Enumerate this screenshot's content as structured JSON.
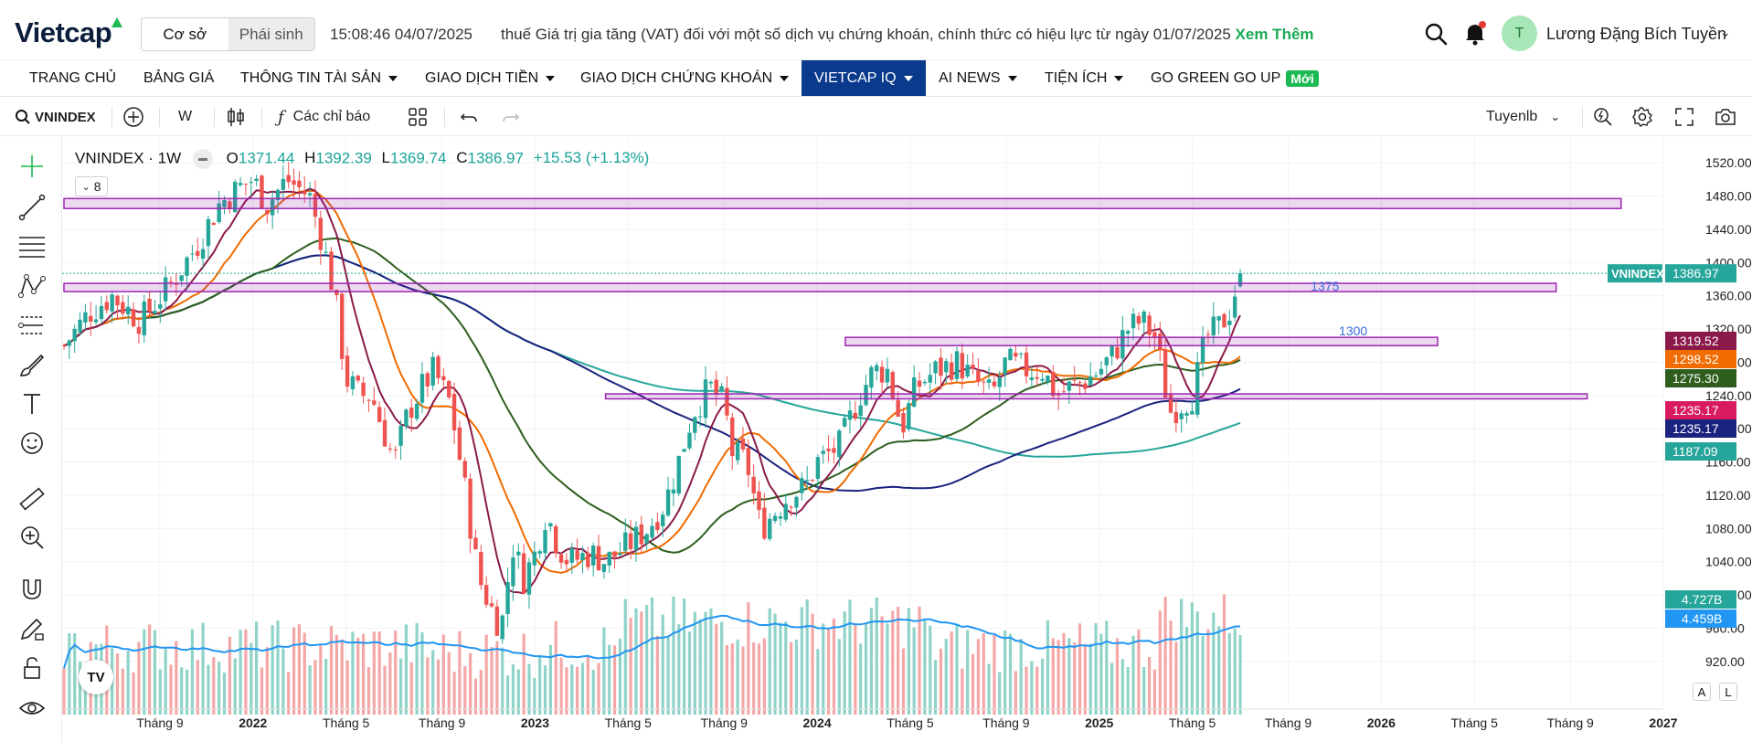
{
  "header": {
    "logo_text": "Vietcap",
    "market_tabs": [
      "Cơ sở",
      "Phái sinh"
    ],
    "clock": "15:08:46 04/07/2025",
    "news_text": "thuế Giá trị gia tăng (VAT) đối với một số dịch vụ chứng khoán, chính thức có hiệu lực từ ngày 01/07/2025",
    "news_more": "Xem Thêm",
    "avatar_initial": "T",
    "user_name": "Lương Đặng Bích Tuyền"
  },
  "nav": {
    "items": [
      "TRANG CHỦ",
      "BẢNG GIÁ",
      "THÔNG TIN TÀI SẢN",
      "GIAO DỊCH TIỀN",
      "GIAO DỊCH CHỨNG KHOÁN",
      "VIETCAP IQ",
      "AI NEWS",
      "TIỆN ÍCH",
      "GO GREEN GO UP"
    ],
    "new_badge": "Mới"
  },
  "toolbar": {
    "symbol": "VNINDEX",
    "interval": "W",
    "indicators": "Các chỉ báo",
    "layout_name": "Tuyenlb"
  },
  "legend": {
    "title": "VNINDEX · 1W",
    "o_label": "O",
    "o_value": "1371.44",
    "h_label": "H",
    "h_value": "1392.39",
    "l_label": "L",
    "l_value": "1369.74",
    "c_label": "C",
    "c_value": "1386.97",
    "change": "+15.53 (+1.13%)",
    "collapse_count": "8"
  },
  "scale_buttons": [
    "A",
    "L"
  ],
  "colors": {
    "up": "#26a69a",
    "down": "#ef5350",
    "zone": "#9c27b0",
    "ma_dark_red": "#8b1a4a",
    "ma_orange": "#f06b00",
    "ma_dark_green": "#2e5e1e",
    "ma_navy": "#1a237e",
    "ma_teal": "#26a69a",
    "vol_ma": "#2196f3"
  },
  "chart_data": {
    "type": "candlestick",
    "symbol": "VNINDEX",
    "interval": "1W",
    "ylim": [
      900,
      1540
    ],
    "y_ticks": [
      "1520.00",
      "1480.00",
      "1440.00",
      "1400.00",
      "1360.00",
      "1320.00",
      "1280.00",
      "1240.00",
      "1200.00",
      "1160.00",
      "1120.00",
      "1080.00",
      "1040.00",
      "1000.00",
      "960.00",
      "920.00"
    ],
    "x_ticks": [
      {
        "label": "Tháng 9",
        "date": 2021.67
      },
      {
        "label": "2022",
        "date": 2022.0
      },
      {
        "label": "Tháng 5",
        "date": 2022.33
      },
      {
        "label": "Tháng 9",
        "date": 2022.67
      },
      {
        "label": "2023",
        "date": 2023.0
      },
      {
        "label": "Tháng 5",
        "date": 2023.33
      },
      {
        "label": "Tháng 9",
        "date": 2023.67
      },
      {
        "label": "2024",
        "date": 2024.0
      },
      {
        "label": "Tháng 5",
        "date": 2024.33
      },
      {
        "label": "Tháng 9",
        "date": 2024.67
      },
      {
        "label": "2025",
        "date": 2025.0
      },
      {
        "label": "Tháng 5",
        "date": 2025.33
      },
      {
        "label": "Tháng 9",
        "date": 2025.67
      },
      {
        "label": "2026",
        "date": 2026.0
      },
      {
        "label": "Tháng 5",
        "date": 2026.33
      },
      {
        "label": "Tháng 9",
        "date": 2026.67
      },
      {
        "label": "2027",
        "date": 2027.0
      }
    ],
    "price_path": [
      [
        2021.33,
        1300
      ],
      [
        2021.42,
        1340
      ],
      [
        2021.5,
        1360
      ],
      [
        2021.6,
        1330
      ],
      [
        2021.7,
        1370
      ],
      [
        2021.8,
        1420
      ],
      [
        2021.88,
        1470
      ],
      [
        2021.95,
        1490
      ],
      [
        2022.0,
        1500
      ],
      [
        2022.05,
        1470
      ],
      [
        2022.12,
        1500
      ],
      [
        2022.2,
        1480
      ],
      [
        2022.25,
        1420
      ],
      [
        2022.29,
        1360
      ],
      [
        2022.33,
        1260
      ],
      [
        2022.38,
        1240
      ],
      [
        2022.42,
        1240
      ],
      [
        2022.46,
        1200
      ],
      [
        2022.5,
        1160
      ],
      [
        2022.55,
        1220
      ],
      [
        2022.6,
        1250
      ],
      [
        2022.64,
        1270
      ],
      [
        2022.7,
        1230
      ],
      [
        2022.75,
        1130
      ],
      [
        2022.8,
        1020
      ],
      [
        2022.85,
        980
      ],
      [
        2022.88,
        960
      ],
      [
        2022.92,
        1060
      ],
      [
        2022.96,
        1020
      ],
      [
        2023.0,
        1050
      ],
      [
        2023.04,
        1100
      ],
      [
        2023.08,
        1060
      ],
      [
        2023.12,
        1040
      ],
      [
        2023.2,
        1050
      ],
      [
        2023.25,
        1040
      ],
      [
        2023.33,
        1060
      ],
      [
        2023.4,
        1080
      ],
      [
        2023.46,
        1110
      ],
      [
        2023.5,
        1150
      ],
      [
        2023.56,
        1220
      ],
      [
        2023.62,
        1250
      ],
      [
        2023.67,
        1230
      ],
      [
        2023.7,
        1170
      ],
      [
        2023.75,
        1160
      ],
      [
        2023.8,
        1080
      ],
      [
        2023.85,
        1100
      ],
      [
        2023.9,
        1120
      ],
      [
        2023.96,
        1130
      ],
      [
        2024.0,
        1160
      ],
      [
        2024.08,
        1180
      ],
      [
        2024.15,
        1240
      ],
      [
        2024.2,
        1270
      ],
      [
        2024.25,
        1270
      ],
      [
        2024.3,
        1200
      ],
      [
        2024.35,
        1250
      ],
      [
        2024.42,
        1270
      ],
      [
        2024.5,
        1280
      ],
      [
        2024.55,
        1260
      ],
      [
        2024.62,
        1240
      ],
      [
        2024.67,
        1280
      ],
      [
        2024.75,
        1270
      ],
      [
        2024.8,
        1270
      ],
      [
        2024.85,
        1240
      ],
      [
        2024.9,
        1250
      ],
      [
        2024.96,
        1260
      ],
      [
        2025.0,
        1270
      ],
      [
        2025.05,
        1290
      ],
      [
        2025.1,
        1320
      ],
      [
        2025.15,
        1330
      ],
      [
        2025.2,
        1310
      ],
      [
        2025.25,
        1220
      ],
      [
        2025.29,
        1230
      ],
      [
        2025.33,
        1240
      ],
      [
        2025.38,
        1310
      ],
      [
        2025.42,
        1320
      ],
      [
        2025.46,
        1340
      ],
      [
        2025.5,
        1386.97
      ]
    ],
    "zones": [
      {
        "from": 2021.33,
        "to": 2026.85,
        "low": 1465,
        "high": 1477
      },
      {
        "from": 2021.33,
        "to": 2026.62,
        "low": 1365,
        "high": 1375,
        "label": "1375"
      },
      {
        "from": 2024.1,
        "to": 2026.2,
        "low": 1300,
        "high": 1310,
        "label": "1300"
      },
      {
        "from": 2023.25,
        "to": 2026.73,
        "low": 1236,
        "high": 1242
      }
    ],
    "ma_labels": [
      {
        "value": "1319.52",
        "color": "#8b1a4a"
      },
      {
        "value": "1298.52",
        "color": "#f06b00"
      },
      {
        "value": "1275.30",
        "color": "#2e5e1e"
      },
      {
        "value": "1235.17",
        "color": "#d81b60"
      },
      {
        "value": "1235.17",
        "color": "#1a237e"
      },
      {
        "value": "1187.09",
        "color": "#26a69a"
      }
    ],
    "last_price": {
      "symbol": "VNINDEX",
      "value": "1386.97"
    },
    "volume_labels": [
      {
        "value": "4.727B",
        "color": "#26a69a"
      },
      {
        "value": "4.459B",
        "color": "#2196f3"
      }
    ]
  }
}
